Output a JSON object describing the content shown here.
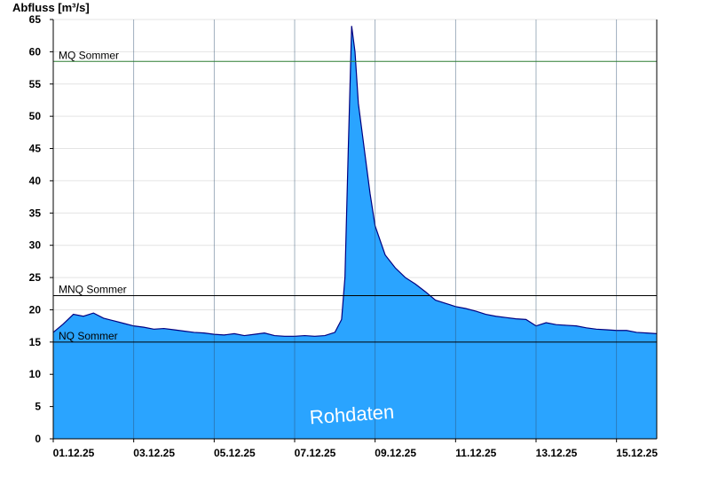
{
  "chart_data": {
    "type": "area",
    "ylabel": "Abfluss [m³/s]",
    "ylim": [
      0,
      65
    ],
    "yticks": [
      0,
      5,
      10,
      15,
      20,
      25,
      30,
      35,
      40,
      45,
      50,
      55,
      60,
      65
    ],
    "xlim": [
      "2025-12-01",
      "2025-12-16"
    ],
    "xticks": [
      "2025-12-01",
      "2025-12-03",
      "2025-12-05",
      "2025-12-07",
      "2025-12-09",
      "2025-12-11",
      "2025-12-13",
      "2025-12-15"
    ],
    "xtick_labels": [
      "01.12.25",
      "03.12.25",
      "05.12.25",
      "07.12.25",
      "09.12.25",
      "11.12.25",
      "13.12.25",
      "15.12.25"
    ],
    "grid": true,
    "fill_color": "#2aa4ff",
    "line_color": "#000080",
    "series": [
      {
        "x": [
          "2025-12-01 00:00",
          "2025-12-01 06:00",
          "2025-12-01 12:00",
          "2025-12-01 18:00",
          "2025-12-02 00:00",
          "2025-12-02 06:00",
          "2025-12-02 12:00",
          "2025-12-02 18:00",
          "2025-12-03 00:00",
          "2025-12-03 06:00",
          "2025-12-03 12:00",
          "2025-12-03 18:00",
          "2025-12-04 00:00",
          "2025-12-04 06:00",
          "2025-12-04 12:00",
          "2025-12-04 18:00",
          "2025-12-05 00:00",
          "2025-12-05 06:00",
          "2025-12-05 12:00",
          "2025-12-05 18:00",
          "2025-12-06 00:00",
          "2025-12-06 06:00",
          "2025-12-06 12:00",
          "2025-12-06 18:00",
          "2025-12-07 00:00",
          "2025-12-07 06:00",
          "2025-12-07 12:00",
          "2025-12-07 18:00",
          "2025-12-08 00:00",
          "2025-12-08 04:00",
          "2025-12-08 06:00",
          "2025-12-08 08:00",
          "2025-12-08 10:00",
          "2025-12-08 12:00",
          "2025-12-08 14:00",
          "2025-12-08 18:00",
          "2025-12-08 21:00",
          "2025-12-09 00:00",
          "2025-12-09 06:00",
          "2025-12-09 12:00",
          "2025-12-09 18:00",
          "2025-12-10 00:00",
          "2025-12-10 06:00",
          "2025-12-10 12:00",
          "2025-12-10 18:00",
          "2025-12-11 00:00",
          "2025-12-11 06:00",
          "2025-12-11 12:00",
          "2025-12-11 18:00",
          "2025-12-12 00:00",
          "2025-12-12 06:00",
          "2025-12-12 12:00",
          "2025-12-12 18:00",
          "2025-12-13 00:00",
          "2025-12-13 06:00",
          "2025-12-13 12:00",
          "2025-12-13 18:00",
          "2025-12-14 00:00",
          "2025-12-14 06:00",
          "2025-12-14 12:00",
          "2025-12-14 18:00",
          "2025-12-15 00:00",
          "2025-12-15 06:00",
          "2025-12-15 12:00",
          "2025-12-15 18:00",
          "2025-12-16 00:00"
        ],
        "y": [
          16.5,
          17.8,
          19.3,
          19.0,
          19.5,
          18.7,
          18.3,
          17.9,
          17.5,
          17.3,
          17.0,
          17.1,
          16.9,
          16.7,
          16.5,
          16.4,
          16.2,
          16.1,
          16.3,
          16.0,
          16.2,
          16.4,
          16.0,
          15.9,
          15.9,
          16.0,
          15.9,
          16.0,
          16.5,
          18.5,
          25.0,
          45.0,
          64.0,
          60.0,
          52.0,
          44.0,
          38.0,
          33.0,
          28.5,
          26.5,
          25.0,
          24.0,
          22.8,
          21.5,
          21.0,
          20.5,
          20.2,
          19.8,
          19.3,
          19.0,
          18.8,
          18.6,
          18.5,
          17.5,
          18.0,
          17.7,
          17.6,
          17.5,
          17.2,
          17.0,
          16.9,
          16.8,
          16.8,
          16.5,
          16.4,
          16.3
        ]
      }
    ],
    "reference_lines": [
      {
        "label": "MQ Sommer",
        "value": 58.5,
        "color": "#2e7d32"
      },
      {
        "label": "MNQ Sommer",
        "value": 22.2,
        "color": "#000000"
      },
      {
        "label": "NQ Sommer",
        "value": 15.0,
        "color": "#000000"
      }
    ],
    "annotation": "Rohdaten"
  }
}
